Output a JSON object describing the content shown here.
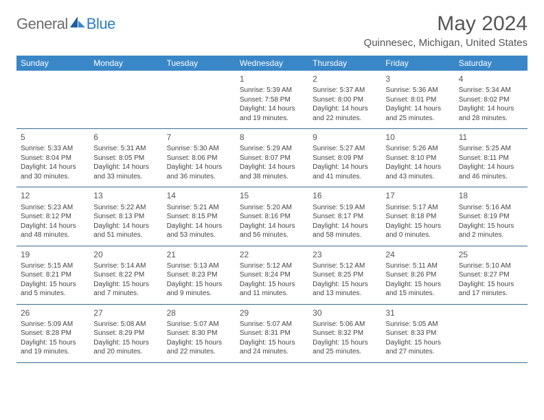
{
  "brand": {
    "part1": "General",
    "part2": "Blue"
  },
  "title": "May 2024",
  "location": "Quinnesec, Michigan, United States",
  "colors": {
    "header_bg": "#3a87c7",
    "header_fg": "#ffffff",
    "rule": "#3a6a95",
    "brand_gray": "#6b6b6b",
    "brand_blue": "#2d7dc4"
  },
  "day_labels": [
    "Sunday",
    "Monday",
    "Tuesday",
    "Wednesday",
    "Thursday",
    "Friday",
    "Saturday"
  ],
  "cells": [
    {
      "blank": true
    },
    {
      "blank": true
    },
    {
      "blank": true
    },
    {
      "d": "1",
      "sr": "Sunrise: 5:39 AM",
      "ss": "Sunset: 7:58 PM",
      "dl1": "Daylight: 14 hours",
      "dl2": "and 19 minutes."
    },
    {
      "d": "2",
      "sr": "Sunrise: 5:37 AM",
      "ss": "Sunset: 8:00 PM",
      "dl1": "Daylight: 14 hours",
      "dl2": "and 22 minutes."
    },
    {
      "d": "3",
      "sr": "Sunrise: 5:36 AM",
      "ss": "Sunset: 8:01 PM",
      "dl1": "Daylight: 14 hours",
      "dl2": "and 25 minutes."
    },
    {
      "d": "4",
      "sr": "Sunrise: 5:34 AM",
      "ss": "Sunset: 8:02 PM",
      "dl1": "Daylight: 14 hours",
      "dl2": "and 28 minutes."
    },
    {
      "d": "5",
      "sr": "Sunrise: 5:33 AM",
      "ss": "Sunset: 8:04 PM",
      "dl1": "Daylight: 14 hours",
      "dl2": "and 30 minutes."
    },
    {
      "d": "6",
      "sr": "Sunrise: 5:31 AM",
      "ss": "Sunset: 8:05 PM",
      "dl1": "Daylight: 14 hours",
      "dl2": "and 33 minutes."
    },
    {
      "d": "7",
      "sr": "Sunrise: 5:30 AM",
      "ss": "Sunset: 8:06 PM",
      "dl1": "Daylight: 14 hours",
      "dl2": "and 36 minutes."
    },
    {
      "d": "8",
      "sr": "Sunrise: 5:29 AM",
      "ss": "Sunset: 8:07 PM",
      "dl1": "Daylight: 14 hours",
      "dl2": "and 38 minutes."
    },
    {
      "d": "9",
      "sr": "Sunrise: 5:27 AM",
      "ss": "Sunset: 8:09 PM",
      "dl1": "Daylight: 14 hours",
      "dl2": "and 41 minutes."
    },
    {
      "d": "10",
      "sr": "Sunrise: 5:26 AM",
      "ss": "Sunset: 8:10 PM",
      "dl1": "Daylight: 14 hours",
      "dl2": "and 43 minutes."
    },
    {
      "d": "11",
      "sr": "Sunrise: 5:25 AM",
      "ss": "Sunset: 8:11 PM",
      "dl1": "Daylight: 14 hours",
      "dl2": "and 46 minutes."
    },
    {
      "d": "12",
      "sr": "Sunrise: 5:23 AM",
      "ss": "Sunset: 8:12 PM",
      "dl1": "Daylight: 14 hours",
      "dl2": "and 48 minutes."
    },
    {
      "d": "13",
      "sr": "Sunrise: 5:22 AM",
      "ss": "Sunset: 8:13 PM",
      "dl1": "Daylight: 14 hours",
      "dl2": "and 51 minutes."
    },
    {
      "d": "14",
      "sr": "Sunrise: 5:21 AM",
      "ss": "Sunset: 8:15 PM",
      "dl1": "Daylight: 14 hours",
      "dl2": "and 53 minutes."
    },
    {
      "d": "15",
      "sr": "Sunrise: 5:20 AM",
      "ss": "Sunset: 8:16 PM",
      "dl1": "Daylight: 14 hours",
      "dl2": "and 56 minutes."
    },
    {
      "d": "16",
      "sr": "Sunrise: 5:19 AM",
      "ss": "Sunset: 8:17 PM",
      "dl1": "Daylight: 14 hours",
      "dl2": "and 58 minutes."
    },
    {
      "d": "17",
      "sr": "Sunrise: 5:17 AM",
      "ss": "Sunset: 8:18 PM",
      "dl1": "Daylight: 15 hours",
      "dl2": "and 0 minutes."
    },
    {
      "d": "18",
      "sr": "Sunrise: 5:16 AM",
      "ss": "Sunset: 8:19 PM",
      "dl1": "Daylight: 15 hours",
      "dl2": "and 2 minutes."
    },
    {
      "d": "19",
      "sr": "Sunrise: 5:15 AM",
      "ss": "Sunset: 8:21 PM",
      "dl1": "Daylight: 15 hours",
      "dl2": "and 5 minutes."
    },
    {
      "d": "20",
      "sr": "Sunrise: 5:14 AM",
      "ss": "Sunset: 8:22 PM",
      "dl1": "Daylight: 15 hours",
      "dl2": "and 7 minutes."
    },
    {
      "d": "21",
      "sr": "Sunrise: 5:13 AM",
      "ss": "Sunset: 8:23 PM",
      "dl1": "Daylight: 15 hours",
      "dl2": "and 9 minutes."
    },
    {
      "d": "22",
      "sr": "Sunrise: 5:12 AM",
      "ss": "Sunset: 8:24 PM",
      "dl1": "Daylight: 15 hours",
      "dl2": "and 11 minutes."
    },
    {
      "d": "23",
      "sr": "Sunrise: 5:12 AM",
      "ss": "Sunset: 8:25 PM",
      "dl1": "Daylight: 15 hours",
      "dl2": "and 13 minutes."
    },
    {
      "d": "24",
      "sr": "Sunrise: 5:11 AM",
      "ss": "Sunset: 8:26 PM",
      "dl1": "Daylight: 15 hours",
      "dl2": "and 15 minutes."
    },
    {
      "d": "25",
      "sr": "Sunrise: 5:10 AM",
      "ss": "Sunset: 8:27 PM",
      "dl1": "Daylight: 15 hours",
      "dl2": "and 17 minutes."
    },
    {
      "d": "26",
      "sr": "Sunrise: 5:09 AM",
      "ss": "Sunset: 8:28 PM",
      "dl1": "Daylight: 15 hours",
      "dl2": "and 19 minutes."
    },
    {
      "d": "27",
      "sr": "Sunrise: 5:08 AM",
      "ss": "Sunset: 8:29 PM",
      "dl1": "Daylight: 15 hours",
      "dl2": "and 20 minutes."
    },
    {
      "d": "28",
      "sr": "Sunrise: 5:07 AM",
      "ss": "Sunset: 8:30 PM",
      "dl1": "Daylight: 15 hours",
      "dl2": "and 22 minutes."
    },
    {
      "d": "29",
      "sr": "Sunrise: 5:07 AM",
      "ss": "Sunset: 8:31 PM",
      "dl1": "Daylight: 15 hours",
      "dl2": "and 24 minutes."
    },
    {
      "d": "30",
      "sr": "Sunrise: 5:06 AM",
      "ss": "Sunset: 8:32 PM",
      "dl1": "Daylight: 15 hours",
      "dl2": "and 25 minutes."
    },
    {
      "d": "31",
      "sr": "Sunrise: 5:05 AM",
      "ss": "Sunset: 8:33 PM",
      "dl1": "Daylight: 15 hours",
      "dl2": "and 27 minutes."
    },
    {
      "blank": true
    }
  ]
}
